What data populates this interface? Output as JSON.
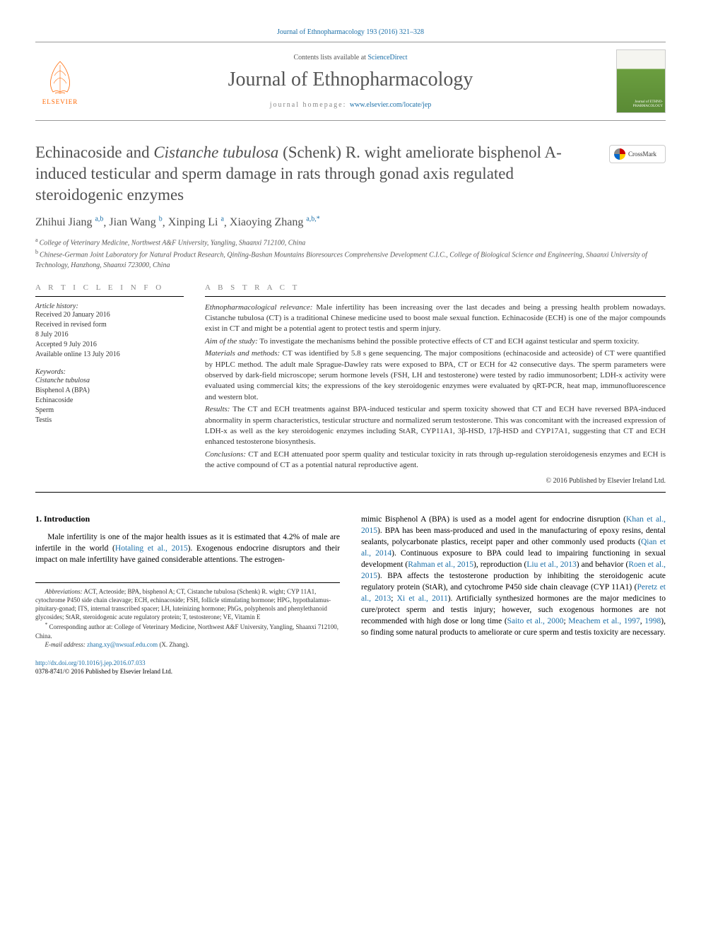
{
  "top_link": "Journal of Ethnopharmacology 193 (2016) 321–328",
  "header": {
    "contents_prefix": "Contents lists available at ",
    "contents_link": "ScienceDirect",
    "journal_name": "Journal of Ethnopharmacology",
    "homepage_prefix": "journal homepage: ",
    "homepage_link": "www.elsevier.com/locate/jep",
    "elsevier_label": "ELSEVIER",
    "cover_text": "Journal of\nETHNO-\nPHARMACOLOGY"
  },
  "title_parts": {
    "p1": "Echinacoside and ",
    "em1": "Cistanche tubulosa",
    "p2": " (Schenk) R. wight ameliorate bisphenol A-induced testicular and sperm damage in rats through gonad axis regulated steroidogenic enzymes"
  },
  "crossmark": "CrossMark",
  "authors": [
    {
      "name": "Zhihui Jiang",
      "sup": "a,b"
    },
    {
      "name": "Jian Wang",
      "sup": "b"
    },
    {
      "name": "Xinping Li",
      "sup": "a"
    },
    {
      "name": "Xiaoying Zhang",
      "sup": "a,b,*"
    }
  ],
  "affiliations": [
    {
      "sup": "a",
      "text": "College of Veterinary Medicine, Northwest A&F University, Yangling, Shaanxi 712100, China"
    },
    {
      "sup": "b",
      "text": "Chinese-German Joint Laboratory for Natural Product Research, Qinling-Bashan Mountains Bioresources Comprehensive Development C.I.C., College of Biological Science and Engineering, Shaanxi University of Technology, Hanzhong, Shaanxi 723000, China"
    }
  ],
  "info": {
    "heading": "A R T I C L E  I N F O",
    "history_label": "Article history:",
    "history": [
      "Received 20 January 2016",
      "Received in revised form",
      "8 July 2016",
      "Accepted 9 July 2016",
      "Available online 13 July 2016"
    ],
    "keywords_label": "Keywords:",
    "keywords": [
      "Cistanche tubulosa",
      "Bisphenol A (BPA)",
      "Echinacoside",
      "Sperm",
      "Testis"
    ]
  },
  "abstract": {
    "heading": "A B S T R A C T",
    "sections": [
      {
        "label": "Ethnopharmacological relevance:",
        "text": " Male infertility has been increasing over the last decades and being a pressing health problem nowadays. Cistanche tubulosa (CT) is a traditional Chinese medicine used to boost male sexual function. Echinacoside (ECH) is one of the major compounds exist in CT and might be a potential agent to protect testis and sperm injury."
      },
      {
        "label": "Aim of the study:",
        "text": " To investigate the mechanisms behind the possible protective effects of CT and ECH against testicular and sperm toxicity."
      },
      {
        "label": "Materials and methods:",
        "text": " CT was identified by 5.8 s gene sequencing. The major compositions (echinacoside and acteoside) of CT were quantified by HPLC method. The adult male Sprague-Dawley rats were exposed to BPA, CT or ECH for 42 consecutive days. The sperm parameters were observed by dark-field microscope; serum hormone levels (FSH, LH and testosterone) were tested by radio immunosorbent; LDH-x activity were evaluated using commercial kits; the expressions of the key steroidogenic enzymes were evaluated by qRT-PCR, heat map, immunofluorescence and western blot."
      },
      {
        "label": "Results:",
        "text": " The CT and ECH treatments against BPA-induced testicular and sperm toxicity showed that CT and ECH have reversed BPA-induced abnormality in sperm characteristics, testicular structure and normalized serum testosterone. This was concomitant with the increased expression of LDH-x as well as the key steroidogenic enzymes including StAR, CYP11A1, 3β-HSD, 17β-HSD and CYP17A1, suggesting that CT and ECH enhanced testosterone biosynthesis."
      },
      {
        "label": "Conclusions:",
        "text": " CT and ECH attenuated poor sperm quality and testicular toxicity in rats through up-regulation steroidogenesis enzymes and ECH is the active compound of CT as a potential natural reproductive agent."
      }
    ],
    "copyright": "© 2016 Published by Elsevier Ireland Ltd."
  },
  "body": {
    "section_heading": "1.  Introduction",
    "col1_p1_a": "Male infertility is one of the major health issues as it is estimated that 4.2% of male are infertile in the world (",
    "col1_p1_link1": "Hotaling et al., 2015",
    "col1_p1_b": "). Exogenous endocrine disruptors and their impact on male infertility have gained considerable attentions. The estrogen-",
    "col2_p1_a": "mimic Bisphenol A (BPA) is used as a model agent for endocrine disruption (",
    "col2_l1": "Khan et al., 2015",
    "col2_p1_b": "). BPA has been mass-produced and used in the manufacturing of epoxy resins, dental sealants, polycarbonate plastics, receipt paper and other commonly used products (",
    "col2_l2": "Qian et al., 2014",
    "col2_p1_c": "). Continuous exposure to BPA could lead to impairing functioning in sexual development (",
    "col2_l3": "Rahman et al., 2015",
    "col2_p1_d": "), reproduction (",
    "col2_l4": "Liu et al., 2013",
    "col2_p1_e": ") and behavior (",
    "col2_l5": "Roen et al., 2015",
    "col2_p1_f": "). BPA affects the testosterone production by inhibiting the steroidogenic acute regulatory protein (StAR), and cytochrome P450 side chain cleavage (CYP 11A1) (",
    "col2_l6": "Peretz et al., 2013",
    "col2_p1_g": "; ",
    "col2_l7": "Xi et al., 2011",
    "col2_p1_h": "). Artificially synthesized hormones are the major medicines to cure/protect sperm and testis injury; however, such exogenous hormones are not recommended with high dose or long time (",
    "col2_l8": "Saito et al., 2000",
    "col2_p1_i": "; ",
    "col2_l9": "Meachem et al., 1997",
    "col2_p1_j": ", ",
    "col2_l10": "1998",
    "col2_p1_k": "), so finding some natural products to ameliorate or cure sperm and testis toxicity are necessary."
  },
  "footnotes": {
    "abbrev_label": "Abbreviations:",
    "abbrev_text": " ACT, Acteoside; BPA, bisphenol A; CT, Cistanche tubulosa (Schenk) R. wight; CYP 11A1, cytochrome P450 side chain cleavage; ECH, echinacoside; FSH, follicle stimulating hormone; HPG, hypothalamus-pituitary-gonad; ITS, internal transcribed spacer; LH, luteinizing hormone; PhGs, polyphenols and phenylethanoid glycosides; StAR, steroidogenic acute regulatory protein; T, testosterone; VE, Vitamin E",
    "corr_label": "*",
    "corr_text": "Corresponding author at: College of Veterinary Medicine, Northwest A&F University, Yangling, Shaanxi 712100, China.",
    "email_label": "E-mail address:",
    "email_link": "zhang.xy@nwsuaf.edu.com",
    "email_suffix": " (X. Zhang)."
  },
  "doi": {
    "link": "http://dx.doi.org/10.1016/j.jep.2016.07.033",
    "issn_line": "0378-8741/© 2016 Published by Elsevier Ireland Ltd."
  },
  "colors": {
    "link": "#1b6fa8",
    "text": "#333333",
    "heading_gray": "#505050",
    "elsevier_orange": "#ff6600",
    "cover_green": "#6b9e3f"
  }
}
